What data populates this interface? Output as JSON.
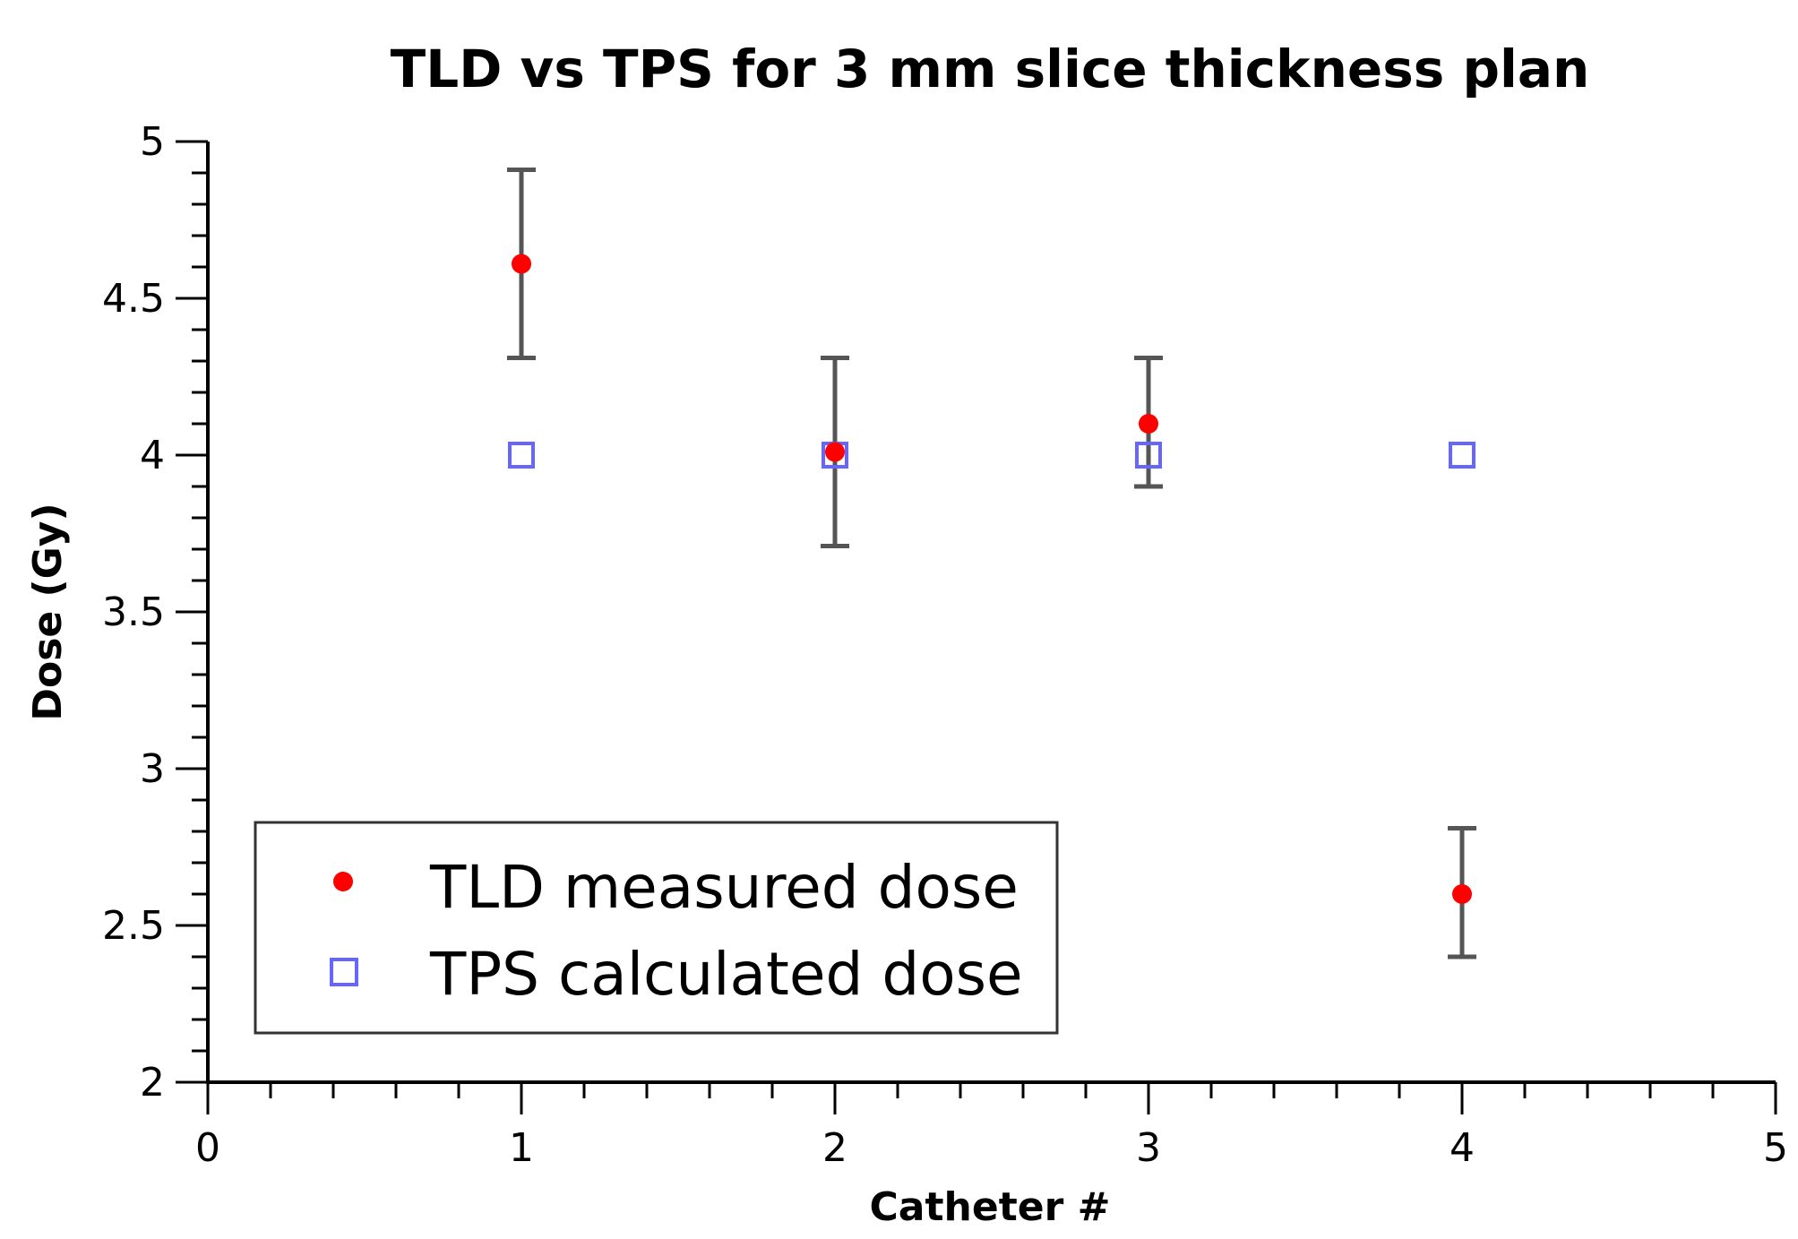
{
  "chart_data": {
    "type": "scatter",
    "title": "TLD vs TPS for 3 mm slice thickness plan",
    "xlabel": "Catheter #",
    "ylabel": "Dose (Gy)",
    "xlim": [
      0,
      5
    ],
    "ylim": [
      2,
      5
    ],
    "xticks": [
      0,
      1,
      2,
      3,
      4,
      5
    ],
    "xtick_labels": [
      "0",
      "1",
      "2",
      "3",
      "4",
      "5"
    ],
    "yticks": [
      2,
      2.5,
      3,
      3.5,
      4,
      4.5,
      5
    ],
    "ytick_labels": [
      "2",
      "2.5",
      "3",
      "3.5",
      "4",
      "4.5",
      "5"
    ],
    "grid": false,
    "legend_position": "bottom-left",
    "series": [
      {
        "name": "TLD measured dose",
        "marker": "filled-circle",
        "color": "#ff0000",
        "x": [
          1,
          2,
          3,
          4
        ],
        "y": [
          4.61,
          4.01,
          4.1,
          2.6
        ],
        "err_low": [
          4.31,
          3.71,
          3.9,
          2.4
        ],
        "err_high": [
          4.91,
          4.31,
          4.31,
          2.81
        ]
      },
      {
        "name": "TPS calculated dose",
        "marker": "open-square",
        "color": "#6666ff",
        "x": [
          1,
          2,
          3,
          4
        ],
        "y": [
          4.0,
          4.0,
          4.0,
          4.0
        ]
      }
    ],
    "errorbar_color": "#555555"
  }
}
